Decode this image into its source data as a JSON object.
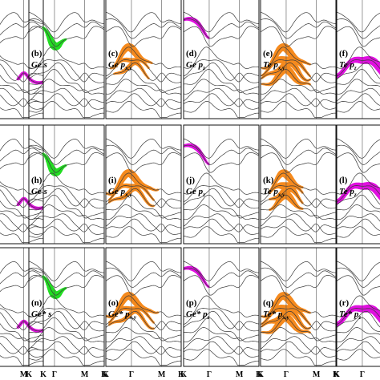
{
  "chart_data": {
    "type": "line",
    "description_kind": "band-structure-projection-grid",
    "colors": {
      "band": "#3a3a3a",
      "ge_s": "#22dd22",
      "p_xy": "#f58a1e",
      "p_z": "#e010e0",
      "frame": "#111111"
    },
    "kpath": [
      "K",
      "Γ",
      "M",
      "K"
    ],
    "columns": [
      {
        "id": "ge-s",
        "orbital": "s",
        "color_key": "ge_s"
      },
      {
        "id": "ge-pxy",
        "orbital": "p_xy",
        "color_key": "p_xy"
      },
      {
        "id": "ge-pz",
        "orbital": "p_z",
        "color_key": "p_z"
      },
      {
        "id": "te-pxy",
        "orbital": "p_xy",
        "color_key": "p_xy"
      },
      {
        "id": "te-pz",
        "orbital": "p_z",
        "color_key": "p_z"
      }
    ],
    "panels": [
      {
        "label": "(b)",
        "element": "Ge",
        "orb": "s",
        "sub": ""
      },
      {
        "label": "(c)",
        "element": "Ge",
        "orb": "p",
        "sub": "x,y"
      },
      {
        "label": "(d)",
        "element": "Ge",
        "orb": "p",
        "sub": "z"
      },
      {
        "label": "(e)",
        "element": "Te",
        "orb": "p",
        "sub": "x,y"
      },
      {
        "label": "(f)",
        "element": "Te",
        "orb": "p",
        "sub": "z"
      },
      {
        "label": "(h)",
        "element": "Ge",
        "orb": "s",
        "sub": ""
      },
      {
        "label": "(i)",
        "element": "Ge",
        "orb": "p",
        "sub": "x,y"
      },
      {
        "label": "(j)",
        "element": "Ge",
        "orb": "p",
        "sub": "z"
      },
      {
        "label": "(k)",
        "element": "Te",
        "orb": "p",
        "sub": "x,y"
      },
      {
        "label": "(l)",
        "element": "Te",
        "orb": "p",
        "sub": "z"
      },
      {
        "label": "(n)",
        "element": "Ge*",
        "orb": "s",
        "sub": ""
      },
      {
        "label": "(o)",
        "element": "Ge*",
        "orb": "p",
        "sub": "x,y"
      },
      {
        "label": "(p)",
        "element": "Ge*",
        "orb": "p",
        "sub": "z"
      },
      {
        "label": "(q)",
        "element": "Te*",
        "orb": "p",
        "sub": "x,y"
      },
      {
        "label": "(r)",
        "element": "Te*",
        "orb": "p",
        "sub": "z"
      }
    ]
  }
}
